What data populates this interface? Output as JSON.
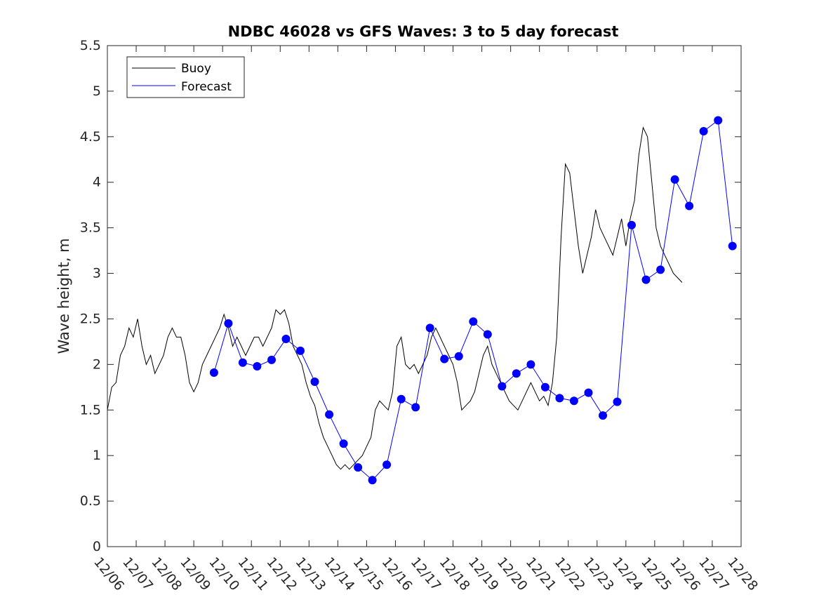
{
  "chart_data": {
    "type": "line",
    "title": "NDBC 46028 vs GFS Waves: 3 to 5 day forecast",
    "xlabel": "",
    "ylabel": "Wave height, m",
    "xlim": [
      0,
      22
    ],
    "ylim": [
      0,
      5.5
    ],
    "y_ticks": [
      0,
      0.5,
      1,
      1.5,
      2,
      2.5,
      3,
      3.5,
      4,
      4.5,
      5,
      5.5
    ],
    "y_tick_labels": [
      "0",
      "0.5",
      "1",
      "1.5",
      "2",
      "2.5",
      "3",
      "3.5",
      "4",
      "4.5",
      "5",
      "5.5"
    ],
    "x_ticks": [
      0,
      1,
      2,
      3,
      4,
      5,
      6,
      7,
      8,
      9,
      10,
      11,
      12,
      13,
      14,
      15,
      16,
      17,
      18,
      19,
      20,
      21,
      22
    ],
    "x_tick_labels": [
      "12/06",
      "12/07",
      "12/08",
      "12/09",
      "12/10",
      "12/11",
      "12/12",
      "12/13",
      "12/14",
      "12/15",
      "12/16",
      "12/17",
      "12/18",
      "12/19",
      "12/20",
      "12/21",
      "12/22",
      "12/23",
      "12/24",
      "12/25",
      "12/26",
      "12/27",
      "12/28"
    ],
    "grid": false,
    "legend": {
      "position": "top-left",
      "entries": [
        {
          "label": "Buoy",
          "color": "#000000"
        },
        {
          "label": "Forecast",
          "color": "#0000ff"
        }
      ]
    },
    "series": [
      {
        "name": "Buoy",
        "color": "#000000",
        "points": [
          [
            0.0,
            1.5
          ],
          [
            0.15,
            1.75
          ],
          [
            0.3,
            1.8
          ],
          [
            0.45,
            2.1
          ],
          [
            0.6,
            2.2
          ],
          [
            0.75,
            2.4
          ],
          [
            0.9,
            2.3
          ],
          [
            1.05,
            2.5
          ],
          [
            1.2,
            2.2
          ],
          [
            1.35,
            2.0
          ],
          [
            1.5,
            2.1
          ],
          [
            1.65,
            1.9
          ],
          [
            1.8,
            2.0
          ],
          [
            1.95,
            2.1
          ],
          [
            2.1,
            2.3
          ],
          [
            2.25,
            2.4
          ],
          [
            2.4,
            2.3
          ],
          [
            2.55,
            2.3
          ],
          [
            2.7,
            2.1
          ],
          [
            2.85,
            1.8
          ],
          [
            3.0,
            1.7
          ],
          [
            3.15,
            1.8
          ],
          [
            3.3,
            2.0
          ],
          [
            3.45,
            2.1
          ],
          [
            3.6,
            2.2
          ],
          [
            3.75,
            2.3
          ],
          [
            3.9,
            2.4
          ],
          [
            4.05,
            2.55
          ],
          [
            4.2,
            2.4
          ],
          [
            4.35,
            2.2
          ],
          [
            4.5,
            2.3
          ],
          [
            4.65,
            2.2
          ],
          [
            4.8,
            2.1
          ],
          [
            4.95,
            2.2
          ],
          [
            5.1,
            2.3
          ],
          [
            5.25,
            2.3
          ],
          [
            5.4,
            2.2
          ],
          [
            5.55,
            2.3
          ],
          [
            5.7,
            2.4
          ],
          [
            5.85,
            2.6
          ],
          [
            6.0,
            2.55
          ],
          [
            6.15,
            2.6
          ],
          [
            6.3,
            2.45
          ],
          [
            6.45,
            2.2
          ],
          [
            6.6,
            2.1
          ],
          [
            6.75,
            2.0
          ],
          [
            6.9,
            1.8
          ],
          [
            7.05,
            1.65
          ],
          [
            7.2,
            1.55
          ],
          [
            7.35,
            1.35
          ],
          [
            7.5,
            1.2
          ],
          [
            7.65,
            1.1
          ],
          [
            7.8,
            1.0
          ],
          [
            7.95,
            0.9
          ],
          [
            8.1,
            0.85
          ],
          [
            8.25,
            0.9
          ],
          [
            8.4,
            0.85
          ],
          [
            8.55,
            0.9
          ],
          [
            8.7,
            0.95
          ],
          [
            8.85,
            1.0
          ],
          [
            9.0,
            1.1
          ],
          [
            9.15,
            1.2
          ],
          [
            9.3,
            1.5
          ],
          [
            9.45,
            1.6
          ],
          [
            9.6,
            1.55
          ],
          [
            9.75,
            1.5
          ],
          [
            9.9,
            1.7
          ],
          [
            10.05,
            2.2
          ],
          [
            10.2,
            2.3
          ],
          [
            10.35,
            2.0
          ],
          [
            10.5,
            1.95
          ],
          [
            10.65,
            2.0
          ],
          [
            10.8,
            1.9
          ],
          [
            10.95,
            2.0
          ],
          [
            11.1,
            2.1
          ],
          [
            11.25,
            2.3
          ],
          [
            11.4,
            2.4
          ],
          [
            11.55,
            2.3
          ],
          [
            11.7,
            2.2
          ],
          [
            11.85,
            2.1
          ],
          [
            12.0,
            2.0
          ],
          [
            12.15,
            1.8
          ],
          [
            12.3,
            1.5
          ],
          [
            12.45,
            1.55
          ],
          [
            12.6,
            1.6
          ],
          [
            12.75,
            1.7
          ],
          [
            12.9,
            1.9
          ],
          [
            13.05,
            2.1
          ],
          [
            13.2,
            2.2
          ],
          [
            13.35,
            2.0
          ],
          [
            13.5,
            1.9
          ],
          [
            13.65,
            1.8
          ],
          [
            13.8,
            1.7
          ],
          [
            13.95,
            1.6
          ],
          [
            14.1,
            1.55
          ],
          [
            14.25,
            1.5
          ],
          [
            14.4,
            1.6
          ],
          [
            14.55,
            1.7
          ],
          [
            14.7,
            1.8
          ],
          [
            14.85,
            1.7
          ],
          [
            15.0,
            1.6
          ],
          [
            15.15,
            1.65
          ],
          [
            15.3,
            1.55
          ],
          [
            15.45,
            1.8
          ],
          [
            15.6,
            2.3
          ],
          [
            15.75,
            3.4
          ],
          [
            15.9,
            4.2
          ],
          [
            16.05,
            4.1
          ],
          [
            16.2,
            3.7
          ],
          [
            16.35,
            3.3
          ],
          [
            16.5,
            3.0
          ],
          [
            16.65,
            3.2
          ],
          [
            16.8,
            3.4
          ],
          [
            16.95,
            3.7
          ],
          [
            17.1,
            3.5
          ],
          [
            17.25,
            3.4
          ],
          [
            17.4,
            3.3
          ],
          [
            17.55,
            3.2
          ],
          [
            17.7,
            3.4
          ],
          [
            17.85,
            3.6
          ],
          [
            18.0,
            3.3
          ],
          [
            18.15,
            3.6
          ],
          [
            18.3,
            3.8
          ],
          [
            18.45,
            4.3
          ],
          [
            18.6,
            4.6
          ],
          [
            18.75,
            4.5
          ],
          [
            18.9,
            4.0
          ],
          [
            19.05,
            3.5
          ],
          [
            19.2,
            3.3
          ],
          [
            19.35,
            3.2
          ],
          [
            19.5,
            3.1
          ],
          [
            19.65,
            3.0
          ],
          [
            19.8,
            2.95
          ],
          [
            19.95,
            2.9
          ]
        ]
      },
      {
        "name": "Forecast",
        "color": "#0000ff",
        "points": [
          [
            3.7,
            1.91
          ],
          [
            4.2,
            2.45
          ],
          [
            4.7,
            2.02
          ],
          [
            5.2,
            1.98
          ],
          [
            5.7,
            2.05
          ],
          [
            6.2,
            2.28
          ],
          [
            6.7,
            2.15
          ],
          [
            7.2,
            1.81
          ],
          [
            7.7,
            1.45
          ],
          [
            8.2,
            1.13
          ],
          [
            8.7,
            0.87
          ],
          [
            9.2,
            0.73
          ],
          [
            9.7,
            0.9
          ],
          [
            10.2,
            1.62
          ],
          [
            10.7,
            1.53
          ],
          [
            11.2,
            2.4
          ],
          [
            11.7,
            2.06
          ],
          [
            12.2,
            2.09
          ],
          [
            12.7,
            2.47
          ],
          [
            13.2,
            2.33
          ],
          [
            13.7,
            1.76
          ],
          [
            14.2,
            1.9
          ],
          [
            14.7,
            2.0
          ],
          [
            15.2,
            1.75
          ],
          [
            15.7,
            1.63
          ],
          [
            16.2,
            1.6
          ],
          [
            16.7,
            1.69
          ],
          [
            17.2,
            1.44
          ],
          [
            17.7,
            1.59
          ],
          [
            18.2,
            3.53
          ],
          [
            18.7,
            2.93
          ],
          [
            19.2,
            3.04
          ],
          [
            19.7,
            4.03
          ],
          [
            20.2,
            3.74
          ],
          [
            20.7,
            4.56
          ],
          [
            21.2,
            4.68
          ],
          [
            21.7,
            3.3
          ]
        ]
      }
    ]
  }
}
